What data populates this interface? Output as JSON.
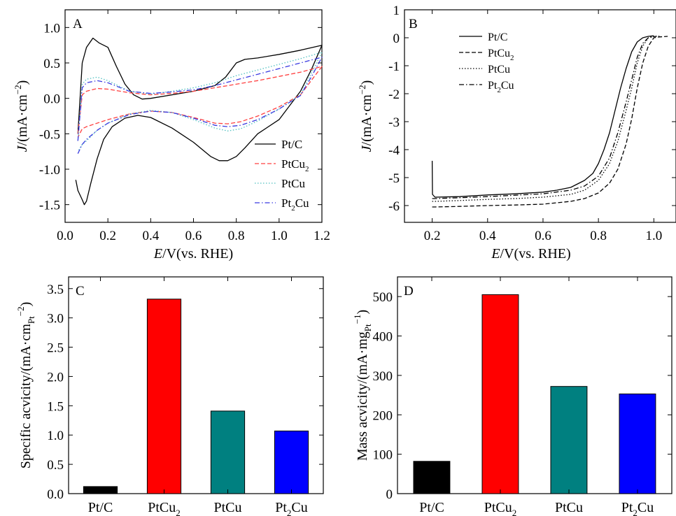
{
  "colors": {
    "Pt/C": "#000000",
    "PtCu2": "#ff0000",
    "PtCu": "#008080",
    "Pt2Cu": "#0000ff",
    "cv_PtCu2": "#ff4040",
    "cv_PtCu": "#4fc0c0",
    "cv_Pt2Cu": "#3a3ae0"
  },
  "chart_data": [
    {
      "panel": "A",
      "type": "line",
      "xlabel_italic": "E",
      "xlabel_rest": "/V(vs. RHE)",
      "ylabel_italic": "J",
      "ylabel_rest": "/(mA·cm",
      "ylabel_sup": "−2",
      "ylabel_end": ")",
      "xlim": [
        0.0,
        1.2
      ],
      "ylim": [
        -1.75,
        1.25
      ],
      "xticks": [
        "0.0",
        "0.2",
        "0.4",
        "0.6",
        "0.8",
        "1.0",
        "1.2"
      ],
      "xtick_values": [
        0.0,
        0.2,
        0.4,
        0.6,
        0.8,
        1.0,
        1.2
      ],
      "yticks": [
        "1.0",
        "0.5",
        "0.0",
        "-0.5",
        "-1.0",
        "-1.5"
      ],
      "ytick_values": [
        1.0,
        0.5,
        0.0,
        -0.5,
        -1.0,
        -1.5
      ],
      "legend_position": "bottom-right",
      "series": [
        {
          "name": "Pt/C",
          "sub": "",
          "style": "solid",
          "color_key": "Pt/C",
          "x": [
            0.06,
            0.08,
            0.1,
            0.13,
            0.16,
            0.2,
            0.24,
            0.28,
            0.32,
            0.36,
            0.4,
            0.5,
            0.6,
            0.7,
            0.75,
            0.8,
            0.84,
            0.9,
            1.0,
            1.1,
            1.2,
            1.15,
            1.1,
            1.0,
            0.9,
            0.84,
            0.8,
            0.76,
            0.72,
            0.68,
            0.6,
            0.5,
            0.4,
            0.34,
            0.28,
            0.22,
            0.18,
            0.15,
            0.12,
            0.1,
            0.09,
            0.08,
            0.06,
            0.05
          ],
          "y": [
            -0.5,
            0.5,
            0.72,
            0.85,
            0.78,
            0.72,
            0.45,
            0.2,
            0.05,
            -0.01,
            0.0,
            0.05,
            0.1,
            0.18,
            0.3,
            0.5,
            0.55,
            0.57,
            0.62,
            0.68,
            0.75,
            0.4,
            0.1,
            -0.3,
            -0.5,
            -0.7,
            -0.82,
            -0.88,
            -0.88,
            -0.82,
            -0.62,
            -0.42,
            -0.27,
            -0.24,
            -0.28,
            -0.4,
            -0.58,
            -0.85,
            -1.2,
            -1.45,
            -1.5,
            -1.43,
            -1.3,
            -1.15
          ]
        },
        {
          "name": "PtCu",
          "sub": "2",
          "style": "dashed",
          "color_key": "cv_PtCu2",
          "x": [
            0.06,
            0.08,
            0.1,
            0.15,
            0.2,
            0.3,
            0.4,
            0.5,
            0.6,
            0.7,
            0.8,
            0.9,
            1.0,
            1.1,
            1.2,
            1.15,
            1.1,
            1.0,
            0.9,
            0.82,
            0.76,
            0.7,
            0.6,
            0.5,
            0.4,
            0.3,
            0.2,
            0.15,
            0.1,
            0.08,
            0.06
          ],
          "y": [
            -0.5,
            0.05,
            0.1,
            0.14,
            0.13,
            0.08,
            0.05,
            0.07,
            0.1,
            0.15,
            0.2,
            0.25,
            0.31,
            0.37,
            0.45,
            0.25,
            0.05,
            -0.12,
            -0.25,
            -0.33,
            -0.36,
            -0.35,
            -0.27,
            -0.2,
            -0.18,
            -0.22,
            -0.3,
            -0.35,
            -0.4,
            -0.43,
            -0.55
          ]
        },
        {
          "name": "PtCu",
          "sub": "",
          "style": "dotted",
          "color_key": "cv_PtCu",
          "x": [
            0.06,
            0.08,
            0.1,
            0.15,
            0.2,
            0.3,
            0.4,
            0.5,
            0.6,
            0.7,
            0.8,
            0.9,
            1.0,
            1.1,
            1.2,
            1.15,
            1.1,
            1.0,
            0.9,
            0.82,
            0.76,
            0.7,
            0.6,
            0.5,
            0.4,
            0.3,
            0.2,
            0.15,
            0.1,
            0.08,
            0.06
          ],
          "y": [
            -0.6,
            0.2,
            0.27,
            0.3,
            0.25,
            0.1,
            0.06,
            0.1,
            0.15,
            0.22,
            0.32,
            0.4,
            0.48,
            0.56,
            0.65,
            0.35,
            0.05,
            -0.15,
            -0.32,
            -0.43,
            -0.46,
            -0.42,
            -0.3,
            -0.2,
            -0.17,
            -0.22,
            -0.35,
            -0.45,
            -0.6,
            -0.65,
            -0.75
          ]
        },
        {
          "name": "Pt",
          "sub": "2",
          "tail": "Cu",
          "style": "dashdot",
          "color_key": "cv_Pt2Cu",
          "x": [
            0.06,
            0.08,
            0.1,
            0.15,
            0.2,
            0.3,
            0.4,
            0.5,
            0.6,
            0.7,
            0.8,
            0.9,
            1.0,
            1.1,
            1.2,
            1.15,
            1.1,
            1.0,
            0.9,
            0.82,
            0.76,
            0.7,
            0.6,
            0.5,
            0.4,
            0.3,
            0.2,
            0.15,
            0.1,
            0.08,
            0.06
          ],
          "y": [
            -0.6,
            0.15,
            0.22,
            0.25,
            0.22,
            0.1,
            0.07,
            0.09,
            0.12,
            0.18,
            0.26,
            0.34,
            0.42,
            0.5,
            0.58,
            0.3,
            0.04,
            -0.15,
            -0.3,
            -0.38,
            -0.4,
            -0.38,
            -0.28,
            -0.2,
            -0.18,
            -0.23,
            -0.35,
            -0.45,
            -0.58,
            -0.65,
            -0.78
          ]
        }
      ]
    },
    {
      "panel": "B",
      "type": "line",
      "xlabel_italic": "E",
      "xlabel_rest": "/V(vs. RHE)",
      "ylabel_italic": "J",
      "ylabel_rest": "/(mA·cm",
      "ylabel_sup": "−2",
      "ylabel_end": ")",
      "xlim": [
        0.1,
        1.08
      ],
      "ylim": [
        -6.6,
        1.0
      ],
      "xticks": [
        "0.2",
        "0.4",
        "0.6",
        "0.8",
        "1.0"
      ],
      "xtick_values": [
        0.2,
        0.4,
        0.6,
        0.8,
        1.0
      ],
      "yticks": [
        "1",
        "0",
        "-1",
        "-2",
        "-3",
        "-4",
        "-5",
        "-6"
      ],
      "ytick_values": [
        1,
        0,
        -1,
        -2,
        -3,
        -4,
        -5,
        -6
      ],
      "legend_position": "top-left",
      "series": [
        {
          "name": "Pt/C",
          "sub": "",
          "style": "solid",
          "color_key": "Pt/C",
          "x": [
            0.2,
            0.201,
            0.21,
            0.3,
            0.4,
            0.5,
            0.6,
            0.65,
            0.7,
            0.75,
            0.78,
            0.8,
            0.82,
            0.84,
            0.86,
            0.88,
            0.9,
            0.92,
            0.94,
            0.96,
            0.98,
            1.0
          ],
          "y": [
            -4.4,
            -5.6,
            -5.7,
            -5.68,
            -5.62,
            -5.58,
            -5.52,
            -5.45,
            -5.35,
            -5.1,
            -4.85,
            -4.5,
            -4.0,
            -3.4,
            -2.6,
            -1.8,
            -1.1,
            -0.5,
            -0.15,
            0.0,
            0.05,
            0.07
          ]
        },
        {
          "name": "PtCu",
          "sub": "2",
          "style": "dashed",
          "color_key": "Pt/C",
          "x": [
            0.2,
            0.21,
            0.3,
            0.4,
            0.5,
            0.6,
            0.7,
            0.75,
            0.8,
            0.84,
            0.87,
            0.9,
            0.92,
            0.94,
            0.96,
            0.98,
            1.0,
            1.02,
            1.05
          ],
          "y": [
            -6.05,
            -6.05,
            -6.03,
            -6.0,
            -5.98,
            -5.95,
            -5.85,
            -5.75,
            -5.55,
            -5.2,
            -4.7,
            -3.8,
            -2.9,
            -1.8,
            -0.9,
            -0.3,
            0.0,
            0.03,
            0.05
          ]
        },
        {
          "name": "PtCu",
          "sub": "",
          "style": "dotted",
          "color_key": "Pt/C",
          "x": [
            0.2,
            0.21,
            0.3,
            0.4,
            0.5,
            0.6,
            0.7,
            0.75,
            0.8,
            0.84,
            0.87,
            0.9,
            0.92,
            0.94,
            0.96,
            0.98,
            1.0,
            1.02
          ],
          "y": [
            -5.85,
            -5.85,
            -5.82,
            -5.78,
            -5.75,
            -5.7,
            -5.6,
            -5.45,
            -5.1,
            -4.5,
            -3.7,
            -2.6,
            -1.8,
            -0.9,
            -0.3,
            0.0,
            0.05,
            0.06
          ]
        },
        {
          "name": "Pt",
          "sub": "2",
          "tail": "Cu",
          "style": "dashdot",
          "color_key": "Pt/C",
          "x": [
            0.2,
            0.21,
            0.3,
            0.4,
            0.5,
            0.6,
            0.7,
            0.75,
            0.8,
            0.84,
            0.87,
            0.9,
            0.92,
            0.94,
            0.96,
            0.98,
            1.0,
            1.01
          ],
          "y": [
            -5.75,
            -5.75,
            -5.72,
            -5.68,
            -5.63,
            -5.58,
            -5.45,
            -5.3,
            -4.95,
            -4.3,
            -3.4,
            -2.3,
            -1.5,
            -0.7,
            -0.2,
            0.0,
            0.04,
            0.05
          ]
        }
      ]
    },
    {
      "panel": "C",
      "type": "bar",
      "ylabel_main": "Specific acvicity/(mA·cm",
      "ylabel_sub": "Pt",
      "ylabel_sup": "−2",
      "ylabel_end": ")",
      "ylim": [
        0,
        3.7
      ],
      "yticks": [
        "0.0",
        "0.5",
        "1.0",
        "1.5",
        "2.0",
        "2.5",
        "3.0",
        "3.5"
      ],
      "ytick_values": [
        0,
        0.5,
        1.0,
        1.5,
        2.0,
        2.5,
        3.0,
        3.5
      ],
      "categories": [
        {
          "main": "Pt/C",
          "sub": "",
          "tail": "",
          "color_key": "Pt/C"
        },
        {
          "main": "PtCu",
          "sub": "2",
          "tail": "",
          "color_key": "PtCu2"
        },
        {
          "main": "PtCu",
          "sub": "",
          "tail": "",
          "color_key": "PtCu"
        },
        {
          "main": "Pt",
          "sub": "2",
          "tail": "Cu",
          "color_key": "Pt2Cu"
        }
      ],
      "values": [
        0.12,
        3.32,
        1.41,
        1.07
      ]
    },
    {
      "panel": "D",
      "type": "bar",
      "ylabel_main": "Mass acvicity/(mA·mg",
      "ylabel_sub": "Pt",
      "ylabel_sup": "−1",
      "ylabel_end": ")",
      "ylim": [
        0,
        550
      ],
      "yticks": [
        "0",
        "100",
        "200",
        "300",
        "400",
        "500"
      ],
      "ytick_values": [
        0,
        100,
        200,
        300,
        400,
        500
      ],
      "categories": [
        {
          "main": "Pt/C",
          "sub": "",
          "tail": "",
          "color_key": "Pt/C"
        },
        {
          "main": "PtCu",
          "sub": "2",
          "tail": "",
          "color_key": "PtCu2"
        },
        {
          "main": "PtCu",
          "sub": "",
          "tail": "",
          "color_key": "PtCu"
        },
        {
          "main": "Pt",
          "sub": "2",
          "tail": "Cu",
          "color_key": "Pt2Cu"
        }
      ],
      "values": [
        82,
        505,
        272,
        253
      ]
    }
  ]
}
